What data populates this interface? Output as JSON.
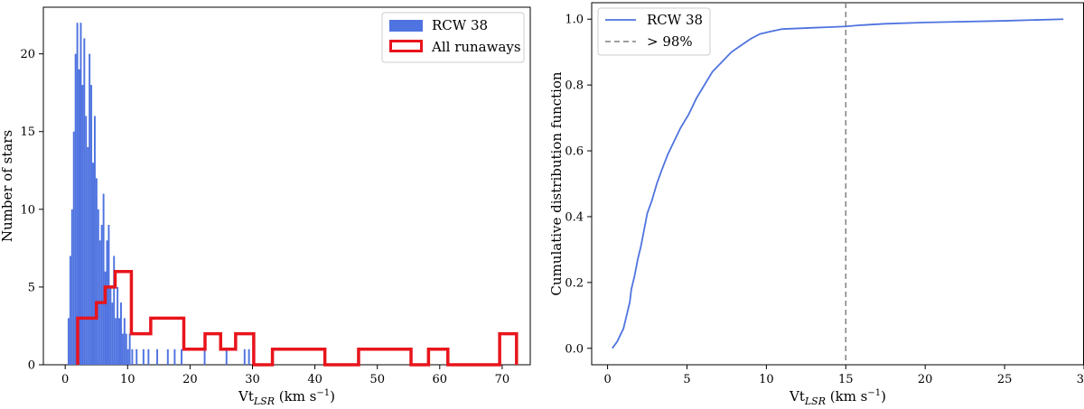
{
  "colors": {
    "blue": "#4f73e0",
    "red": "#e8141c",
    "dashed": "#808080"
  },
  "chart_data": [
    {
      "type": "bar",
      "xlabel_main": "Vt",
      "xlabel_sub": "LSR",
      "xlabel_unit": " (km s",
      "xlabel_exp": "−1",
      "xlabel_close": ")",
      "ylabel": "Number of stars",
      "xlim": [
        -3.5,
        74.5
      ],
      "ylim": [
        0,
        23
      ],
      "xticks": [
        0,
        10,
        20,
        30,
        40,
        50,
        60,
        70
      ],
      "xtick_labels": [
        "0",
        "10",
        "20",
        "30",
        "40",
        "50",
        "60",
        "70"
      ],
      "yticks": [
        0,
        5,
        10,
        15,
        20
      ],
      "ytick_labels": [
        "0",
        "5",
        "10",
        "15",
        "20"
      ],
      "legend_position": "upper right",
      "series": [
        {
          "name": "RCW 38",
          "style": "filled histogram",
          "bin_width": 0.28,
          "x": [
            0.4,
            0.68,
            0.96,
            1.24,
            1.52,
            1.8,
            2.08,
            2.36,
            2.64,
            2.92,
            3.2,
            3.48,
            3.76,
            4.04,
            4.32,
            4.6,
            4.88,
            5.16,
            5.44,
            5.72,
            6.0,
            6.28,
            6.56,
            6.84,
            7.12,
            7.4,
            7.68,
            7.96,
            8.24,
            8.52,
            8.8,
            9.08,
            9.36,
            9.64,
            9.92,
            10.2,
            10.6,
            11.3,
            12.4,
            13.2,
            14.6,
            16.3,
            17.4,
            18.5,
            22.2,
            25.7,
            28.6,
            29.3
          ],
          "values": [
            3,
            7,
            10,
            15,
            20,
            22,
            19,
            22,
            18,
            21,
            16,
            14,
            20,
            18,
            13,
            16,
            12,
            10,
            8,
            9,
            11,
            6,
            8,
            9,
            5,
            4,
            7,
            3,
            5,
            3,
            4,
            2,
            3,
            2,
            1,
            2,
            1,
            1,
            1,
            1,
            1,
            1,
            1,
            1,
            1,
            1,
            1,
            1
          ]
        },
        {
          "name": "All runaways",
          "style": "step histogram",
          "bin_edges": [
            2.0,
            5.0,
            6.4,
            8.0,
            10.6,
            13.7,
            19.0,
            22.4,
            24.9,
            27.3,
            30.2,
            33.2,
            41.6,
            47.0,
            55.4,
            58.2,
            61.3,
            69.6,
            72.3
          ],
          "values": [
            3,
            4,
            5,
            6,
            2,
            3,
            1,
            2,
            1,
            2,
            0,
            1,
            0,
            1,
            0,
            1,
            0,
            2
          ]
        }
      ]
    },
    {
      "type": "line",
      "xlabel_main": "Vt",
      "xlabel_sub": "LSR",
      "xlabel_unit": " (km s",
      "xlabel_exp": "−1",
      "xlabel_close": ")",
      "ylabel": "Cumulative distribution function",
      "xlim": [
        -1.0,
        30.0
      ],
      "ylim": [
        -0.05,
        1.05
      ],
      "xticks": [
        0,
        5,
        10,
        15,
        20,
        25,
        30
      ],
      "xtick_labels": [
        "0",
        "5",
        "10",
        "15",
        "20",
        "25",
        "30"
      ],
      "yticks": [
        0.0,
        0.2,
        0.4,
        0.6,
        0.8,
        1.0
      ],
      "ytick_labels": [
        "0.0",
        "0.2",
        "0.4",
        "0.6",
        "0.8",
        "1.0"
      ],
      "legend_position": "upper left",
      "series": [
        {
          "name": "RCW 38",
          "style": "solid",
          "x": [
            0.3,
            0.6,
            0.8,
            1.0,
            1.2,
            1.4,
            1.5,
            1.7,
            1.9,
            2.1,
            2.3,
            2.5,
            2.8,
            3.1,
            3.4,
            3.8,
            4.2,
            4.6,
            5.1,
            5.6,
            6.1,
            6.6,
            7.2,
            7.8,
            8.4,
            9.0,
            9.6,
            10.2,
            11.0,
            12.0,
            13.0,
            14.0,
            15.0,
            16.0,
            17.5,
            20.0,
            25.0,
            28.7
          ],
          "y": [
            0.0,
            0.02,
            0.04,
            0.06,
            0.1,
            0.14,
            0.18,
            0.22,
            0.27,
            0.31,
            0.36,
            0.41,
            0.45,
            0.5,
            0.54,
            0.59,
            0.63,
            0.67,
            0.71,
            0.76,
            0.8,
            0.84,
            0.87,
            0.9,
            0.92,
            0.94,
            0.955,
            0.962,
            0.97,
            0.972,
            0.974,
            0.976,
            0.978,
            0.982,
            0.986,
            0.99,
            0.995,
            1.0
          ]
        },
        {
          "name": "> 98%",
          "style": "dashed vertical line",
          "x_value": 15.0
        }
      ]
    }
  ]
}
